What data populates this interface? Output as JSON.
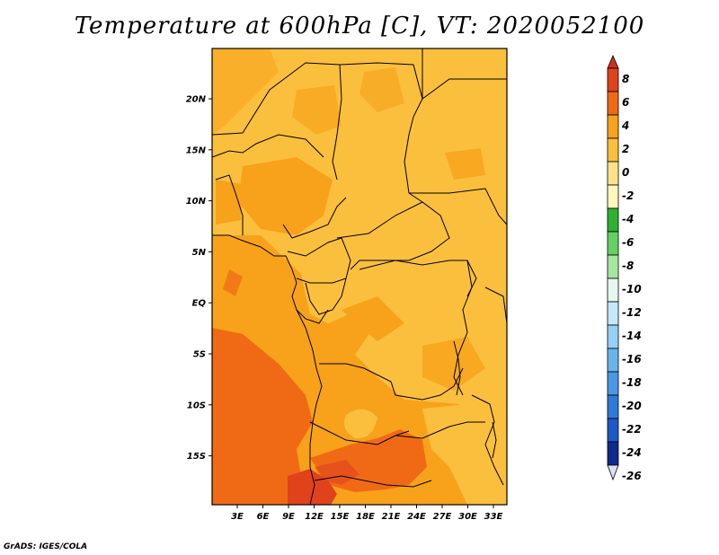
{
  "title": "Temperature at 600hPa [C], VT: 2020052100",
  "credit": "GrADS: IGES/COLA",
  "lat_labels": [
    "20N",
    "15N",
    "10N",
    "5N",
    "EQ",
    "5S",
    "10S",
    "15S"
  ],
  "lon_labels": [
    "3E",
    "6E",
    "9E",
    "12E",
    "15E",
    "18E",
    "21E",
    "24E",
    "27E",
    "30E",
    "33E"
  ],
  "colorbar": {
    "labels": [
      "8",
      "6",
      "4",
      "2",
      "0",
      "-2",
      "-4",
      "-6",
      "-8",
      "-10",
      "-12",
      "-14",
      "-16",
      "-18",
      "-20",
      "-22",
      "-24",
      "-26"
    ],
    "colors": [
      "#e0431c",
      "#f06a16",
      "#f7a21a",
      "#fbbf3e",
      "#fde28a",
      "#fff7bb",
      "#2fb22f",
      "#63d063",
      "#a6e6a0",
      "#e4f8f0",
      "#c4e8fa",
      "#96d0f5",
      "#6ab4ee",
      "#4a97e6",
      "#2f7ad8",
      "#1d5ac6",
      "#0e2a8a",
      "#dde0f7"
    ]
  },
  "map_colors": {
    "band_0_2": "#fbbf3e",
    "band_2_4": "#f7a21a",
    "band_4_6": "#f06a16",
    "band_6_8": "#e0431c"
  }
}
